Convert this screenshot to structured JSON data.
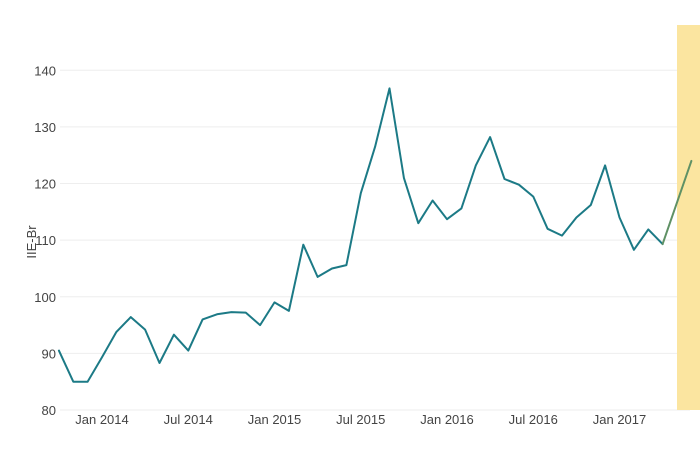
{
  "chart_data": {
    "type": "line",
    "ylabel": "IIE-Br",
    "ylim": [
      80,
      148
    ],
    "yticks": [
      80,
      90,
      100,
      110,
      120,
      130,
      140
    ],
    "xticks": [
      {
        "label": "Jan 2014",
        "month": 1
      },
      {
        "label": "Jul 2014",
        "month": 7
      },
      {
        "label": "Jan 2015",
        "month": 13
      },
      {
        "label": "Jul 2015",
        "month": 19
      },
      {
        "label": "Jan 2016",
        "month": 25
      },
      {
        "label": "Jul 2016",
        "month": 31
      },
      {
        "label": "Jan 2017",
        "month": 37
      }
    ],
    "grid": true,
    "highlight": {
      "from": "2017-06",
      "to": "2017-08",
      "color": "#fbe49b"
    },
    "series": [
      {
        "color": "#1c7a86",
        "points": [
          [
            "2013-10",
            90.5
          ],
          [
            "2013-11",
            85.0
          ],
          [
            "2013-12",
            85.0
          ],
          [
            "2014-01",
            89.3
          ],
          [
            "2014-02",
            93.8
          ],
          [
            "2014-03",
            96.4
          ],
          [
            "2014-04",
            94.2
          ],
          [
            "2014-05",
            88.3
          ],
          [
            "2014-06",
            93.3
          ],
          [
            "2014-07",
            90.5
          ],
          [
            "2014-08",
            96.0
          ],
          [
            "2014-09",
            96.9
          ],
          [
            "2014-10",
            97.3
          ],
          [
            "2014-11",
            97.2
          ],
          [
            "2014-12",
            95.0
          ],
          [
            "2015-01",
            99.0
          ],
          [
            "2015-02",
            97.5
          ],
          [
            "2015-03",
            109.2
          ],
          [
            "2015-04",
            103.5
          ],
          [
            "2015-05",
            105.0
          ],
          [
            "2015-06",
            105.6
          ],
          [
            "2015-07",
            118.3
          ],
          [
            "2015-08",
            126.5
          ],
          [
            "2015-09",
            136.8
          ],
          [
            "2015-10",
            121.0
          ],
          [
            "2015-11",
            113.0
          ],
          [
            "2015-12",
            117.0
          ],
          [
            "2016-01",
            113.7
          ],
          [
            "2016-02",
            115.6
          ],
          [
            "2016-03",
            123.2
          ],
          [
            "2016-04",
            128.2
          ],
          [
            "2016-05",
            120.8
          ],
          [
            "2016-06",
            119.8
          ],
          [
            "2016-07",
            117.7
          ],
          [
            "2016-08",
            112.0
          ],
          [
            "2016-09",
            110.8
          ],
          [
            "2016-10",
            114.0
          ],
          [
            "2016-11",
            116.2
          ],
          [
            "2016-12",
            123.2
          ],
          [
            "2017-01",
            114.0
          ],
          [
            "2017-02",
            108.3
          ],
          [
            "2017-03",
            111.9
          ],
          [
            "2017-04",
            109.3
          ]
        ]
      },
      {
        "color": "#5f9165",
        "points": [
          [
            "2017-04",
            109.3
          ],
          [
            "2017-06",
            124.0
          ]
        ]
      }
    ]
  }
}
